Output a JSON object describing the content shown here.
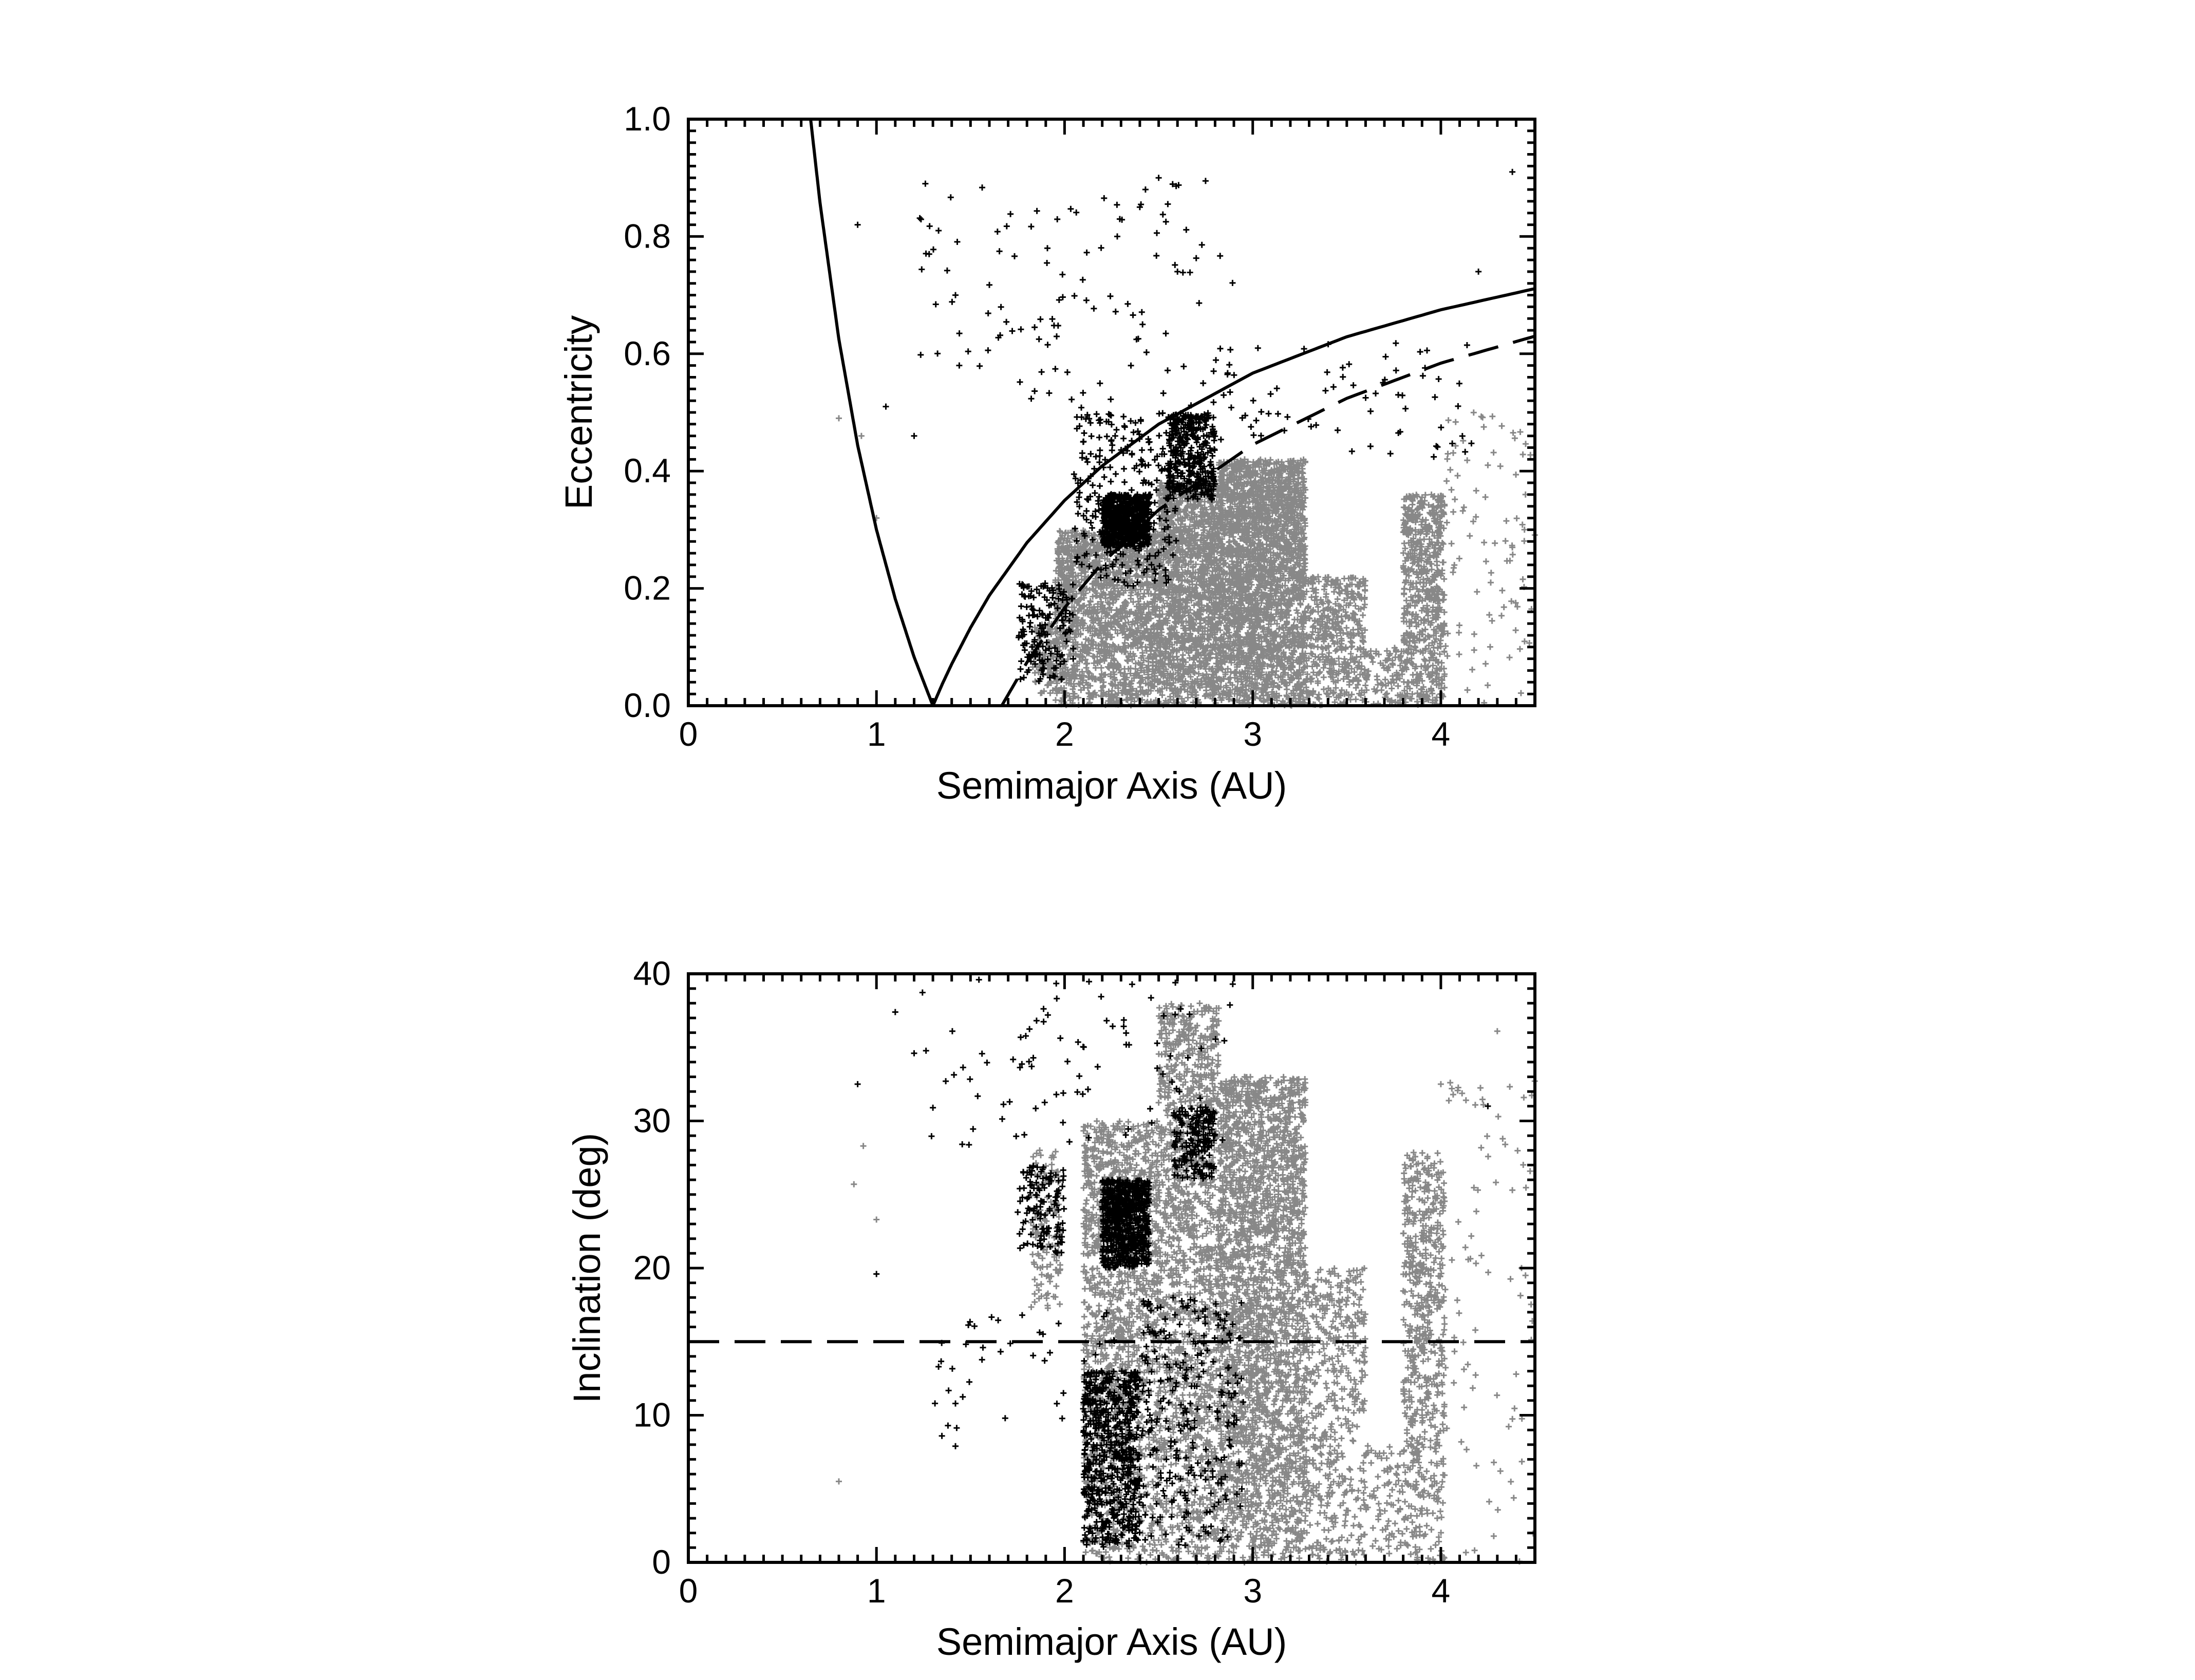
{
  "colors": {
    "background": "#ffffff",
    "axis": "#000000",
    "boundary_points": "#000000",
    "population_points": "#888888",
    "reference_lines": "#000000"
  },
  "chart_data": [
    {
      "type": "scatter",
      "title": "",
      "xlabel": "Semimajor Axis (AU)",
      "ylabel": "Eccentricity",
      "xlim": [
        0,
        4.5
      ],
      "ylim": [
        0.0,
        1.0
      ],
      "xticks": [
        0,
        1,
        2,
        3,
        4
      ],
      "xtick_labels": [
        "0",
        "1",
        "2",
        "3",
        "4"
      ],
      "yticks": [
        0.0,
        0.2,
        0.4,
        0.6,
        0.8,
        1.0
      ],
      "ytick_labels": [
        "0.0",
        "0.2",
        "0.4",
        "0.6",
        "0.8",
        "1.0"
      ],
      "x_minor_step": 0.1,
      "y_minor_step": 0.02,
      "grid": false,
      "marker": "+",
      "point_groups": [
        {
          "color": "#888888",
          "note_clusters_ae": [
            {
              "a": [
                1.83,
                1.97
              ],
              "e": [
                0.02,
                0.14
              ],
              "n": 120
            },
            {
              "a": [
                1.95,
                2.5
              ],
              "e": [
                0.0,
                0.3
              ],
              "n": 1600
            },
            {
              "a": [
                2.5,
                2.82
              ],
              "e": [
                0.0,
                0.38
              ],
              "n": 1500
            },
            {
              "a": [
                2.82,
                3.28
              ],
              "e": [
                0.0,
                0.42
              ],
              "n": 2600
            },
            {
              "a": [
                3.28,
                3.6
              ],
              "e": [
                0.0,
                0.22
              ],
              "n": 450
            },
            {
              "a": [
                3.6,
                3.8
              ],
              "e": [
                0.0,
                0.1
              ],
              "n": 90
            },
            {
              "a": [
                3.8,
                4.02
              ],
              "e": [
                0.0,
                0.36
              ],
              "n": 650
            },
            {
              "a": [
                4.02,
                4.5
              ],
              "e": [
                0.0,
                0.5
              ],
              "n": 90
            }
          ],
          "points": [
            [
              0.8,
              0.49
            ],
            [
              0.92,
              0.46
            ],
            [
              1.0,
              0.32
            ],
            [
              4.25,
              0.41
            ],
            [
              4.38,
              0.27
            ],
            [
              4.45,
              0.36
            ]
          ]
        },
        {
          "color": "#000000",
          "note_clusters_ae": [
            {
              "a": [
                1.75,
                2.05
              ],
              "e": [
                0.04,
                0.21
              ],
              "n": 160
            },
            {
              "a": [
                2.2,
                2.45
              ],
              "e": [
                0.27,
                0.36
              ],
              "n": 700
            },
            {
              "a": [
                2.55,
                2.8
              ],
              "e": [
                0.35,
                0.5
              ],
              "n": 350
            },
            {
              "a": [
                2.05,
                2.6
              ],
              "e": [
                0.2,
                0.5
              ],
              "n": 260
            },
            {
              "a": [
                2.8,
                4.2
              ],
              "e": [
                0.42,
                0.62
              ],
              "n": 70
            },
            {
              "a": [
                1.2,
                2.9
              ],
              "e": [
                0.5,
                0.9
              ],
              "n": 110
            }
          ],
          "points": [
            [
              0.9,
              0.82
            ],
            [
              1.26,
              0.89
            ],
            [
              1.28,
              0.77
            ],
            [
              1.33,
              0.81
            ],
            [
              2.43,
              0.88
            ],
            [
              2.4,
              0.85
            ],
            [
              2.5,
              0.9
            ],
            [
              2.28,
              0.8
            ],
            [
              2.6,
              0.74
            ],
            [
              4.38,
              0.91
            ],
            [
              4.2,
              0.74
            ],
            [
              1.44,
              0.58
            ],
            [
              1.42,
              0.7
            ],
            [
              1.05,
              0.51
            ],
            [
              1.2,
              0.46
            ]
          ]
        }
      ],
      "curves": [
        {
          "style": "solid",
          "equation": "q = a(1 - e) = 1.3 AU",
          "samples": [
            [
              1.3,
              0.0
            ],
            [
              1.35,
              0.037
            ],
            [
              1.4,
              0.071
            ],
            [
              1.5,
              0.133
            ],
            [
              1.6,
              0.188
            ],
            [
              1.8,
              0.278
            ],
            [
              2.0,
              0.35
            ],
            [
              2.2,
              0.409
            ],
            [
              2.5,
              0.48
            ],
            [
              3.0,
              0.567
            ],
            [
              3.5,
              0.629
            ],
            [
              4.0,
              0.675
            ],
            [
              4.5,
              0.711
            ]
          ]
        },
        {
          "style": "solid",
          "equation": "Q = a(1 + e) = 1.3 AU",
          "samples": [
            [
              0.65,
              1.0
            ],
            [
              0.7,
              0.857
            ],
            [
              0.8,
              0.625
            ],
            [
              0.9,
              0.444
            ],
            [
              1.0,
              0.3
            ],
            [
              1.1,
              0.182
            ],
            [
              1.2,
              0.083
            ],
            [
              1.3,
              0.0
            ]
          ]
        },
        {
          "style": "dashed",
          "equation": "q = a(1 - e) = 1.666 AU",
          "samples": [
            [
              1.666,
              0.0
            ],
            [
              1.8,
              0.074
            ],
            [
              2.0,
              0.167
            ],
            [
              2.2,
              0.243
            ],
            [
              2.5,
              0.334
            ],
            [
              3.0,
              0.445
            ],
            [
              3.5,
              0.524
            ],
            [
              4.0,
              0.584
            ],
            [
              4.5,
              0.63
            ]
          ]
        }
      ]
    },
    {
      "type": "scatter",
      "title": "",
      "xlabel": "Semimajor Axis (AU)",
      "ylabel": "Inclination (deg)",
      "xlim": [
        0,
        4.5
      ],
      "ylim": [
        0,
        40
      ],
      "xticks": [
        0,
        1,
        2,
        3,
        4
      ],
      "xtick_labels": [
        "0",
        "1",
        "2",
        "3",
        "4"
      ],
      "yticks": [
        0,
        10,
        20,
        30,
        40
      ],
      "ytick_labels": [
        "0",
        "10",
        "20",
        "30",
        "40"
      ],
      "x_minor_step": 0.1,
      "y_minor_step": 1,
      "grid": false,
      "marker": "+",
      "point_groups": [
        {
          "color": "#888888",
          "note_clusters_ai": [
            {
              "a": [
                1.82,
                1.98
              ],
              "i": [
                17,
                28
              ],
              "n": 140
            },
            {
              "a": [
                2.1,
                2.5
              ],
              "i": [
                0,
                30
              ],
              "n": 1500
            },
            {
              "a": [
                2.5,
                2.82
              ],
              "i": [
                0,
                38
              ],
              "n": 1500
            },
            {
              "a": [
                2.82,
                3.28
              ],
              "i": [
                0,
                33
              ],
              "n": 2700
            },
            {
              "a": [
                3.28,
                3.6
              ],
              "i": [
                0,
                20
              ],
              "n": 500
            },
            {
              "a": [
                3.6,
                3.8
              ],
              "i": [
                0,
                8
              ],
              "n": 80
            },
            {
              "a": [
                3.8,
                4.02
              ],
              "i": [
                0,
                28
              ],
              "n": 650
            },
            {
              "a": [
                4.02,
                4.5
              ],
              "i": [
                0,
                33
              ],
              "n": 80
            }
          ],
          "points": [
            [
              0.8,
              5.5
            ],
            [
              0.88,
              25.7
            ],
            [
              0.93,
              28.3
            ],
            [
              1.0,
              23.3
            ],
            [
              4.0,
              32.5
            ],
            [
              4.05,
              32.6
            ],
            [
              4.3,
              36.1
            ],
            [
              4.38,
              25.3
            ],
            [
              4.45,
              19.5
            ]
          ]
        },
        {
          "color": "#000000",
          "note_clusters_ai": [
            {
              "a": [
                1.75,
                2.0
              ],
              "i": [
                21,
                27
              ],
              "n": 120
            },
            {
              "a": [
                2.2,
                2.45
              ],
              "i": [
                20,
                26
              ],
              "n": 700
            },
            {
              "a": [
                2.58,
                2.8
              ],
              "i": [
                26,
                31
              ],
              "n": 180
            },
            {
              "a": [
                2.1,
                2.4
              ],
              "i": [
                1,
                13
              ],
              "n": 600
            },
            {
              "a": [
                2.4,
                2.95
              ],
              "i": [
                1,
                18
              ],
              "n": 260
            },
            {
              "a": [
                1.2,
                2.9
              ],
              "i": [
                28,
                40
              ],
              "n": 90
            },
            {
              "a": [
                1.3,
                2.3
              ],
              "i": [
                8,
                17
              ],
              "n": 40
            }
          ],
          "points": [
            [
              0.9,
              32.5
            ],
            [
              1.0,
              19.6
            ],
            [
              1.1,
              37.4
            ],
            [
              1.2,
              34.6
            ],
            [
              1.3,
              30.9
            ],
            [
              1.33,
              13.3
            ],
            [
              1.38,
              9.3
            ],
            [
              1.42,
              10.8
            ],
            [
              1.42,
              7.9
            ],
            [
              4.25,
              31.0
            ]
          ]
        }
      ],
      "curves": [
        {
          "style": "dashed",
          "equation": "i = 15 deg",
          "samples": [
            [
              0.0,
              15
            ],
            [
              4.5,
              15
            ]
          ]
        }
      ]
    }
  ]
}
